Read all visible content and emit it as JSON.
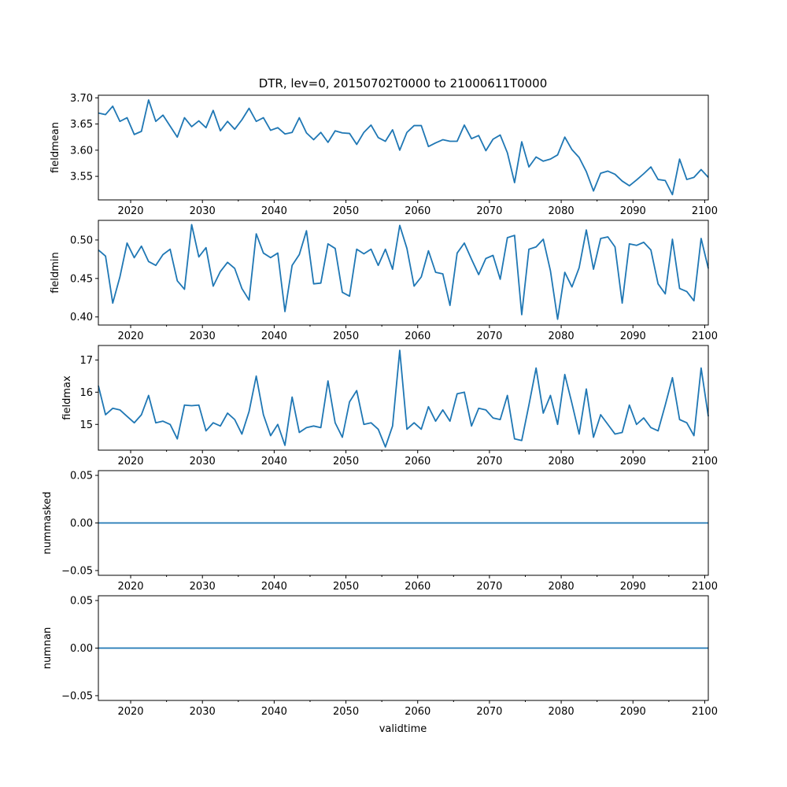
{
  "chart_data": {
    "type": "line",
    "title": "DTR, lev=0, 20150702T0000 to 21000611T0000",
    "xlabel": "validtime",
    "x_start_year": 2015.5,
    "x_step": 1,
    "xlim": [
      2015.5,
      2100.5
    ],
    "xticks": [
      2020,
      2030,
      2040,
      2050,
      2060,
      2070,
      2080,
      2090,
      2100
    ],
    "xtick_labels": [
      "2020",
      "2030",
      "2040",
      "2050",
      "2060",
      "2070",
      "2080",
      "2090",
      "2100"
    ],
    "xminor": [
      2025,
      2035,
      2045,
      2055,
      2065,
      2075,
      2085,
      2095
    ],
    "panels": [
      {
        "ylabel": "fieldmean",
        "ylim": [
          3.505,
          3.705
        ],
        "yticks": [
          3.55,
          3.6,
          3.65,
          3.7
        ],
        "ytick_labels": [
          "3.55",
          "3.60",
          "3.65",
          "3.70"
        ],
        "values": [
          3.671,
          3.668,
          3.684,
          3.655,
          3.662,
          3.63,
          3.636,
          3.696,
          3.655,
          3.667,
          3.646,
          3.625,
          3.662,
          3.645,
          3.656,
          3.643,
          3.676,
          3.637,
          3.655,
          3.64,
          3.658,
          3.68,
          3.655,
          3.662,
          3.638,
          3.643,
          3.631,
          3.634,
          3.662,
          3.633,
          3.62,
          3.634,
          3.615,
          3.637,
          3.633,
          3.632,
          3.611,
          3.634,
          3.648,
          3.624,
          3.617,
          3.639,
          3.6,
          3.634,
          3.647,
          3.647,
          3.607,
          3.614,
          3.62,
          3.617,
          3.617,
          3.648,
          3.622,
          3.628,
          3.599,
          3.621,
          3.629,
          3.595,
          3.538,
          3.616,
          3.568,
          3.587,
          3.579,
          3.583,
          3.591,
          3.625,
          3.601,
          3.586,
          3.559,
          3.522,
          3.556,
          3.56,
          3.554,
          3.541,
          3.532,
          3.543,
          3.555,
          3.568,
          3.544,
          3.542,
          3.515,
          3.583,
          3.544,
          3.548,
          3.563,
          3.548
        ]
      },
      {
        "ylabel": "fieldmin",
        "ylim": [
          0.3895,
          0.5255
        ],
        "yticks": [
          0.4,
          0.45,
          0.5
        ],
        "ytick_labels": [
          "0.40",
          "0.45",
          "0.50"
        ],
        "values": [
          0.487,
          0.479,
          0.418,
          0.452,
          0.496,
          0.477,
          0.492,
          0.472,
          0.467,
          0.481,
          0.488,
          0.447,
          0.436,
          0.52,
          0.478,
          0.49,
          0.44,
          0.459,
          0.471,
          0.463,
          0.437,
          0.422,
          0.508,
          0.483,
          0.477,
          0.483,
          0.407,
          0.467,
          0.481,
          0.512,
          0.443,
          0.444,
          0.495,
          0.489,
          0.432,
          0.427,
          0.488,
          0.482,
          0.488,
          0.467,
          0.488,
          0.462,
          0.519,
          0.489,
          0.44,
          0.452,
          0.486,
          0.458,
          0.456,
          0.415,
          0.483,
          0.496,
          0.475,
          0.455,
          0.476,
          0.48,
          0.449,
          0.503,
          0.506,
          0.403,
          0.488,
          0.491,
          0.501,
          0.46,
          0.397,
          0.458,
          0.439,
          0.464,
          0.513,
          0.462,
          0.502,
          0.504,
          0.491,
          0.418,
          0.495,
          0.493,
          0.497,
          0.487,
          0.443,
          0.43,
          0.501,
          0.437,
          0.433,
          0.421,
          0.502,
          0.463
        ]
      },
      {
        "ylabel": "fieldmax",
        "ylim": [
          14.2,
          17.45
        ],
        "yticks": [
          15,
          16,
          17
        ],
        "ytick_labels": [
          "15",
          "16",
          "17"
        ],
        "values": [
          16.2,
          15.3,
          15.5,
          15.45,
          15.25,
          15.05,
          15.3,
          15.9,
          15.05,
          15.1,
          15.0,
          14.55,
          15.6,
          15.58,
          15.6,
          14.8,
          15.05,
          14.95,
          15.35,
          15.15,
          14.7,
          15.4,
          16.5,
          15.3,
          14.65,
          15.0,
          14.35,
          15.85,
          14.75,
          14.9,
          14.95,
          14.9,
          16.35,
          15.05,
          14.6,
          15.7,
          16.05,
          15.0,
          15.05,
          14.85,
          14.3,
          14.95,
          17.3,
          14.85,
          15.05,
          14.85,
          15.55,
          15.1,
          15.45,
          15.1,
          15.95,
          16.0,
          14.95,
          15.5,
          15.45,
          15.2,
          15.15,
          15.9,
          14.55,
          14.5,
          15.6,
          16.75,
          15.35,
          15.9,
          15.0,
          16.55,
          15.65,
          14.7,
          16.1,
          14.6,
          15.3,
          15.0,
          14.7,
          14.75,
          15.6,
          15.0,
          15.2,
          14.9,
          14.8,
          15.6,
          16.45,
          15.15,
          15.05,
          14.65,
          16.75,
          15.25
        ]
      },
      {
        "ylabel": "nummasked",
        "ylim": [
          -0.055,
          0.055
        ],
        "yticks": [
          -0.05,
          0.0,
          0.05
        ],
        "ytick_labels": [
          "−0.05",
          "0.00",
          "0.05"
        ],
        "values": [
          0,
          0
        ]
      },
      {
        "ylabel": "numnan",
        "ylim": [
          -0.055,
          0.055
        ],
        "yticks": [
          -0.05,
          0.0,
          0.05
        ],
        "ytick_labels": [
          "−0.05",
          "0.00",
          "0.05"
        ],
        "values": [
          0,
          0
        ]
      }
    ]
  },
  "colors": {
    "series": "#1f77b4",
    "axes": "#000000",
    "background": "#ffffff"
  }
}
